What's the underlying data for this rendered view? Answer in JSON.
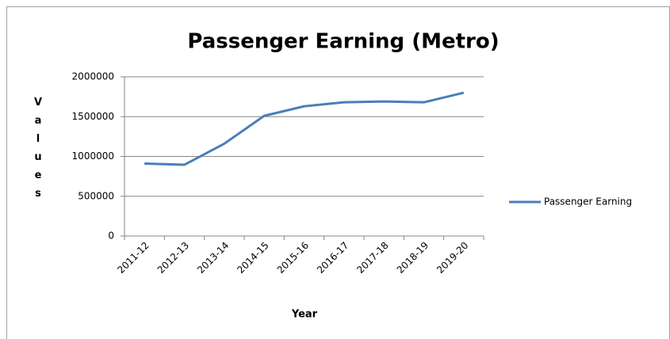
{
  "chart_data": {
    "type": "line",
    "title": "Passenger Earning (Metro)",
    "x_label": "Year",
    "y_label": "Values",
    "categories": [
      "2011-12",
      "2012-13",
      "2013-14",
      "2014-15",
      "2015-16",
      "2016-17",
      "2017-18",
      "2018-19",
      "2019-20"
    ],
    "series": [
      {
        "name": "Passenger Earning",
        "color": "#4a7ebb",
        "values": [
          910000,
          895000,
          1160000,
          1510000,
          1630000,
          1680000,
          1690000,
          1680000,
          1800000
        ]
      }
    ],
    "ylim": [
      0,
      2000000
    ],
    "yticks": [
      0,
      500000,
      1000000,
      1500000,
      2000000
    ],
    "grid": true,
    "legend": "right"
  }
}
